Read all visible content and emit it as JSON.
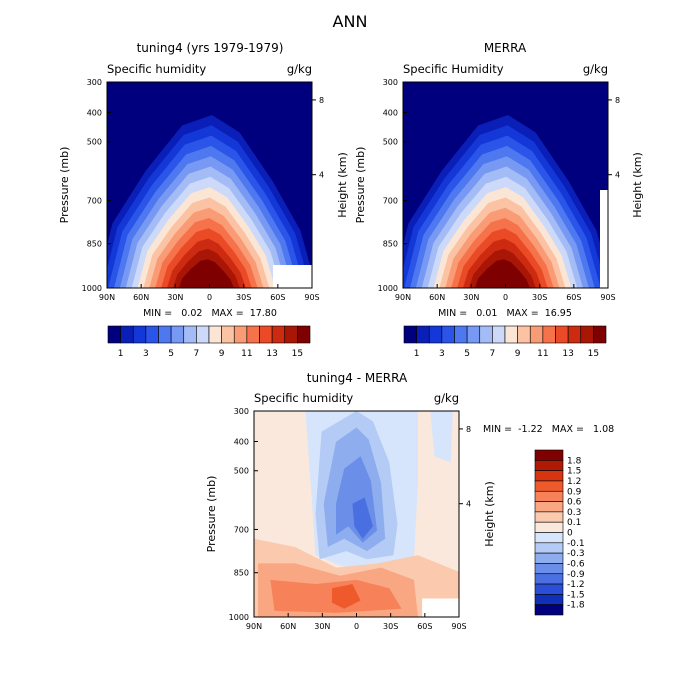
{
  "figure_title": "ANN",
  "chart_data": [
    {
      "type": "heatmap",
      "title": "tuning4 (yrs 1979-1979)",
      "subtitle_left": "Specific humidity",
      "subtitle_right": "g/kg",
      "xlabel": "",
      "ylabel": "Pressure (mb)",
      "y2label": "Height (km)",
      "x_ticks": [
        "90N",
        "60N",
        "30N",
        "0",
        "30S",
        "60S",
        "90S"
      ],
      "y_ticks": [
        "300",
        "400",
        "500",
        "700",
        "850",
        "1000"
      ],
      "y2_ticks": [
        "8",
        "4"
      ],
      "stats": "MIN =   0.02   MAX =  17.80",
      "colorbar": {
        "orientation": "horizontal",
        "labels": [
          "1",
          "3",
          "5",
          "7",
          "9",
          "11",
          "13",
          "15"
        ],
        "colors": [
          "#00007f",
          "#0a1fb8",
          "#1438d8",
          "#2a55e8",
          "#4d78f0",
          "#7799f3",
          "#a3bcf6",
          "#cdd9f9",
          "#fbe6d6",
          "#fbc3a4",
          "#f99b75",
          "#f6724b",
          "#ea4a25",
          "#cd2a12",
          "#a91605",
          "#7f0000"
        ]
      },
      "missing_region": "bottom-right corner near 60S-90S, 850-1000 mb"
    },
    {
      "type": "heatmap",
      "title": "MERRA",
      "subtitle_left": "Specific Humidity",
      "subtitle_right": "g/kg",
      "xlabel": "",
      "ylabel": "Pressure (mb)",
      "y2label": "Height (km)",
      "x_ticks": [
        "90N",
        "60N",
        "30N",
        "0",
        "30S",
        "60S",
        "90S"
      ],
      "y_ticks": [
        "300",
        "400",
        "500",
        "700",
        "850",
        "1000"
      ],
      "y2_ticks": [
        "8",
        "4"
      ],
      "stats": "MIN =   0.01   MAX =  16.95",
      "colorbar": {
        "orientation": "horizontal",
        "labels": [
          "1",
          "3",
          "5",
          "7",
          "9",
          "11",
          "13",
          "15"
        ],
        "colors": [
          "#00007f",
          "#0a1fb8",
          "#1438d8",
          "#2a55e8",
          "#4d78f0",
          "#7799f3",
          "#a3bcf6",
          "#cdd9f9",
          "#fbe6d6",
          "#fbc3a4",
          "#f99b75",
          "#f6724b",
          "#ea4a25",
          "#cd2a12",
          "#a91605",
          "#7f0000"
        ]
      }
    },
    {
      "type": "heatmap",
      "title": "tuning4 - MERRA",
      "subtitle_left": "Specific humidity",
      "subtitle_right": "g/kg",
      "xlabel": "",
      "ylabel": "Pressure (mb)",
      "y2label": "Height (km)",
      "x_ticks": [
        "90N",
        "60N",
        "30N",
        "0",
        "30S",
        "60S",
        "90S"
      ],
      "y_ticks": [
        "300",
        "400",
        "500",
        "700",
        "850",
        "1000"
      ],
      "y2_ticks": [
        "8",
        "4"
      ],
      "stats": "MIN =  -1.22   MAX =   1.08",
      "colorbar": {
        "orientation": "vertical",
        "labels": [
          "1.8",
          "1.5",
          "1.2",
          "0.9",
          "0.6",
          "0.3",
          "0.1",
          "0",
          "-0.1",
          "-0.3",
          "-0.6",
          "-0.9",
          "-1.2",
          "-1.5",
          "-1.8"
        ],
        "colors": [
          "#7f0000",
          "#b01a05",
          "#d73512",
          "#ef5a2c",
          "#f7825a",
          "#f9a682",
          "#fbc9ae",
          "#fbe8dc",
          "#d6e5fb",
          "#b3cbf5",
          "#8eadef",
          "#6b8ee8",
          "#4a6fe0",
          "#2a4fd6",
          "#1030b8",
          "#00007f"
        ]
      }
    }
  ]
}
